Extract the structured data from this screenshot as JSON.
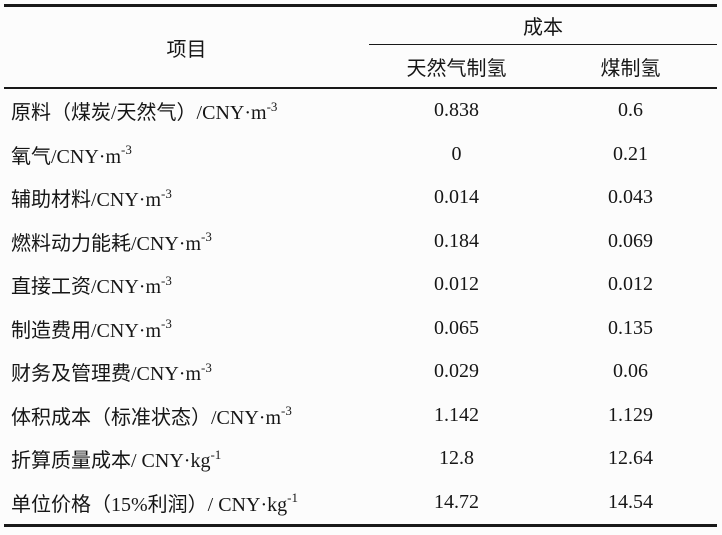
{
  "table": {
    "header": {
      "item": "项目",
      "cost_group": "成本",
      "col_gas": "天然气制氢",
      "col_coal": "煤制氢"
    },
    "rows": [
      {
        "label": "原料（煤炭/天然气）/CNY·m",
        "sup": "-3",
        "gas": "0.838",
        "coal": "0.6"
      },
      {
        "label": "氧气/CNY·m",
        "sup": "-3",
        "gas": "0",
        "coal": "0.21"
      },
      {
        "label": "辅助材料/CNY·m",
        "sup": "-3",
        "gas": "0.014",
        "coal": "0.043"
      },
      {
        "label": "燃料动力能耗/CNY·m",
        "sup": "-3",
        "gas": "0.184",
        "coal": "0.069"
      },
      {
        "label": "直接工资/CNY·m",
        "sup": "-3",
        "gas": "0.012",
        "coal": "0.012"
      },
      {
        "label": "制造费用/CNY·m",
        "sup": "-3",
        "gas": "0.065",
        "coal": "0.135"
      },
      {
        "label": "财务及管理费/CNY·m",
        "sup": "-3",
        "gas": "0.029",
        "coal": "0.06"
      },
      {
        "label": "体积成本（标准状态）/CNY·m",
        "sup": "-3",
        "gas": "1.142",
        "coal": "1.129"
      },
      {
        "label": "折算质量成本/ CNY·kg",
        "sup": "-1",
        "gas": "12.8",
        "coal": "12.64"
      },
      {
        "label": "单位价格（15%利润）/ CNY·kg",
        "sup": "-1",
        "gas": "14.72",
        "coal": "14.54"
      }
    ]
  },
  "colors": {
    "background": "#fcfcfc",
    "rule": "#191919",
    "text": "#161616"
  },
  "chart_data": {
    "type": "table",
    "title": "",
    "column_group": "成本",
    "columns": [
      "项目",
      "天然气制氢",
      "煤制氢"
    ],
    "rows": [
      [
        "原料（煤炭/天然气）/CNY·m⁻³",
        0.838,
        0.6
      ],
      [
        "氧气/CNY·m⁻³",
        0,
        0.21
      ],
      [
        "辅助材料/CNY·m⁻³",
        0.014,
        0.043
      ],
      [
        "燃料动力能耗/CNY·m⁻³",
        0.184,
        0.069
      ],
      [
        "直接工资/CNY·m⁻³",
        0.012,
        0.012
      ],
      [
        "制造费用/CNY·m⁻³",
        0.065,
        0.135
      ],
      [
        "财务及管理费/CNY·m⁻³",
        0.029,
        0.06
      ],
      [
        "体积成本（标准状态）/CNY·m⁻³",
        1.142,
        1.129
      ],
      [
        "折算质量成本/CNY·kg⁻¹",
        12.8,
        12.64
      ],
      [
        "单位价格（15%利润）/CNY·kg⁻¹",
        14.72,
        14.54
      ]
    ]
  }
}
